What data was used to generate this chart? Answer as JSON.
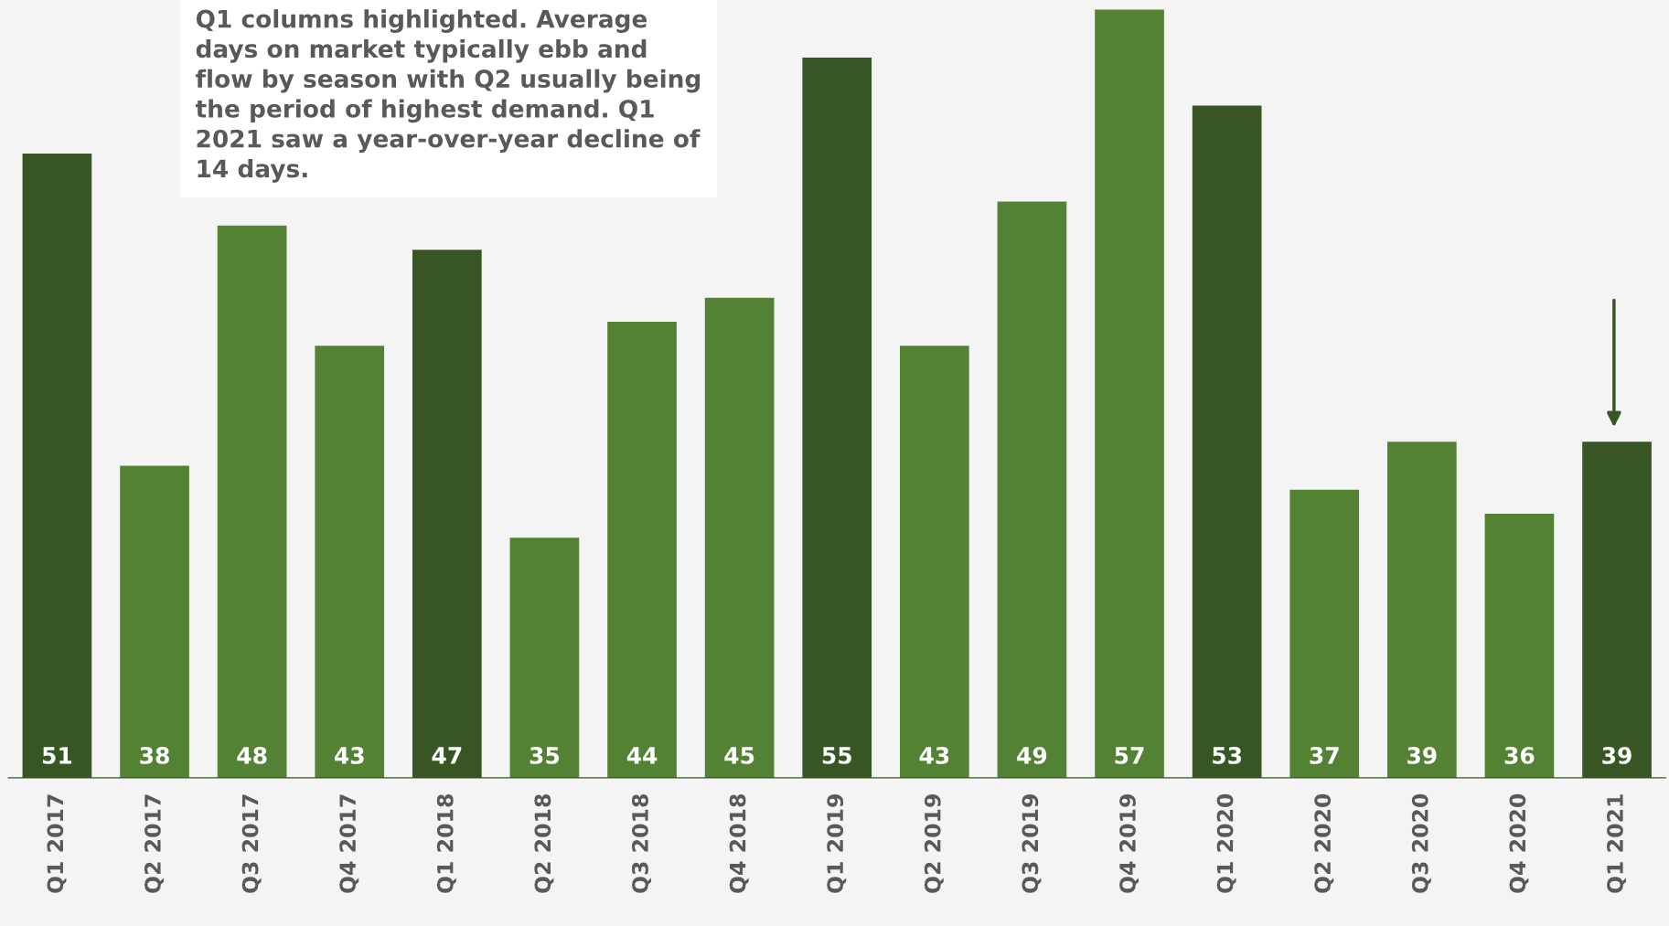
{
  "chart_data": {
    "type": "bar",
    "categories": [
      "Q1 2017",
      "Q2 2017",
      "Q3 2017",
      "Q4 2017",
      "Q1 2018",
      "Q2 2018",
      "Q3 2018",
      "Q4 2018",
      "Q1 2019",
      "Q2 2019",
      "Q3 2019",
      "Q4 2019",
      "Q1 2020",
      "Q2 2020",
      "Q3 2020",
      "Q4 2020",
      "Q1 2021"
    ],
    "values": [
      51,
      38,
      48,
      43,
      47,
      35,
      44,
      45,
      55,
      43,
      49,
      57,
      53,
      37,
      39,
      36,
      39
    ],
    "colors": [
      "#375623",
      "#548235",
      "#548235",
      "#548235",
      "#375623",
      "#548235",
      "#548235",
      "#548235",
      "#375623",
      "#548235",
      "#548235",
      "#548235",
      "#375623",
      "#548235",
      "#548235",
      "#548235",
      "#375623"
    ],
    "ylim": [
      25,
      57.4
    ],
    "tick_labels": "x",
    "data_labels": true,
    "grid": false,
    "legend": false,
    "annotations": [
      "Q1 columns highlighted. Average days on market typically ebb and flow by season with Q2 usually being the period of highest demand. Q1 2021 saw a year-over-year decline of 14 days."
    ]
  }
}
